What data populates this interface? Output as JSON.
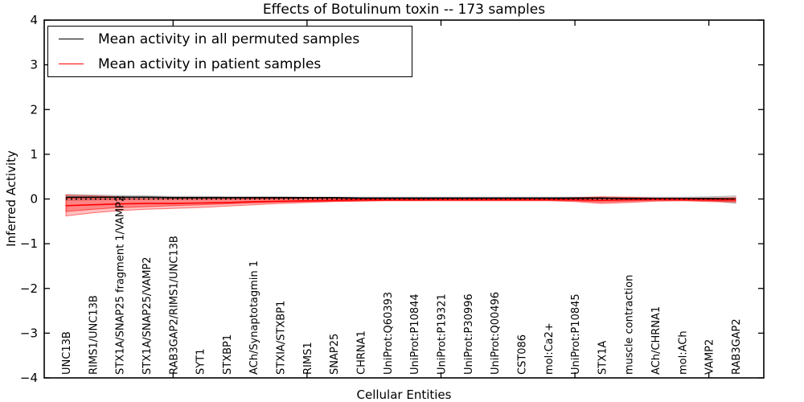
{
  "title": "Effects of Botulinum toxin -- 173 samples",
  "legend": {
    "items": [
      {
        "label": "Mean activity in all permuted samples",
        "color": "#000000"
      },
      {
        "label": "Mean activity in patient samples",
        "color": "#ff0000"
      }
    ]
  },
  "chart_data": {
    "type": "line",
    "title": "Effects of Botulinum toxin -- 173 samples",
    "xlabel": "Cellular Entities",
    "ylabel": "Inferred Activity",
    "ylim": [
      -4,
      4
    ],
    "yticks": [
      4,
      3,
      2,
      1,
      0,
      -1,
      -2,
      -3,
      -4
    ],
    "grid": false,
    "legend_position": "upper left",
    "x_major_tick_indices": [
      4,
      9,
      14,
      19,
      24
    ],
    "categories": [
      "UNC13B",
      "RIMS1/UNC13B",
      "STX1A/SNAP25 fragment 1/VAMP2",
      "STX1A/SNAP25/VAMP2",
      "RAB3GAP2/RIMS1/UNC13B",
      "SYT1",
      "STXBP1",
      "ACh/Synaptotagmin 1",
      "STXIA/STXBP1",
      "RIMS1",
      "SNAP25",
      "CHRNA1",
      "UniProt:Q60393",
      "UniProt:P10844",
      "UniProt:P19321",
      "UniProt:P30996",
      "UniProt:Q00496",
      "CST086",
      "mol:Ca2+",
      "UniProt:P10845",
      "STX1A",
      "muscle contraction",
      "ACh/CHRNA1",
      "mol:ACh",
      "VAMP2",
      "RAB3GAP2"
    ],
    "series": [
      {
        "name": "Mean activity in all permuted samples",
        "color": "#000000",
        "values": [
          0.04,
          0.04,
          0.04,
          0.04,
          0.03,
          0.03,
          0.03,
          0.03,
          0.03,
          0.03,
          0.03,
          0.02,
          0.02,
          0.02,
          0.02,
          0.02,
          0.02,
          0.02,
          0.02,
          0.02,
          0.02,
          0.01,
          0.01,
          0.01,
          0.01,
          0.0
        ]
      },
      {
        "name": "Mean activity in patient samples",
        "color": "#ff0000",
        "values": [
          -0.15,
          -0.13,
          -0.11,
          -0.1,
          -0.1,
          -0.09,
          -0.08,
          -0.06,
          -0.05,
          -0.04,
          -0.03,
          -0.02,
          -0.02,
          -0.02,
          -0.01,
          -0.01,
          -0.01,
          -0.01,
          -0.01,
          -0.02,
          -0.03,
          -0.02,
          -0.01,
          -0.01,
          -0.02,
          -0.02
        ]
      }
    ],
    "bands": [
      {
        "name": "permuted-range",
        "color": "#999999",
        "opacity": 0.4,
        "upper": [
          0.1,
          0.09,
          0.08,
          0.07,
          0.06,
          0.06,
          0.05,
          0.05,
          0.05,
          0.04,
          0.04,
          0.04,
          0.04,
          0.04,
          0.04,
          0.04,
          0.04,
          0.04,
          0.04,
          0.04,
          0.04,
          0.04,
          0.04,
          0.04,
          0.05,
          0.07
        ],
        "lower": [
          -0.03,
          -0.02,
          -0.01,
          0.0,
          0.0,
          0.0,
          0.0,
          0.0,
          0.0,
          0.0,
          0.0,
          0.0,
          0.0,
          0.0,
          0.0,
          0.0,
          0.0,
          0.0,
          0.0,
          0.0,
          0.0,
          0.0,
          -0.01,
          -0.01,
          -0.03,
          -0.1
        ]
      },
      {
        "name": "patient-range-outer",
        "color": "#ff0000",
        "opacity": 0.25,
        "upper": [
          0.09,
          0.07,
          0.05,
          0.04,
          0.03,
          0.03,
          0.03,
          0.02,
          0.02,
          0.02,
          0.02,
          0.01,
          0.01,
          0.01,
          0.01,
          0.01,
          0.01,
          0.01,
          0.01,
          0.03,
          0.05,
          0.04,
          0.02,
          0.02,
          0.02,
          0.03
        ],
        "lower": [
          -0.38,
          -0.31,
          -0.26,
          -0.23,
          -0.21,
          -0.19,
          -0.16,
          -0.13,
          -0.1,
          -0.08,
          -0.06,
          -0.05,
          -0.04,
          -0.04,
          -0.04,
          -0.04,
          -0.04,
          -0.04,
          -0.04,
          -0.06,
          -0.1,
          -0.08,
          -0.05,
          -0.04,
          -0.06,
          -0.07
        ]
      },
      {
        "name": "patient-range-inner",
        "color": "#ff0000",
        "opacity": 0.3,
        "upper": [
          0.02,
          0.01,
          0.0,
          0.0,
          0.0,
          0.0,
          0.0,
          0.0,
          0.0,
          0.0,
          0.0,
          0.0,
          0.0,
          0.0,
          0.0,
          0.0,
          0.0,
          0.0,
          0.0,
          0.01,
          0.02,
          0.01,
          0.0,
          0.0,
          0.0,
          0.01
        ],
        "lower": [
          -0.28,
          -0.23,
          -0.19,
          -0.17,
          -0.15,
          -0.13,
          -0.11,
          -0.09,
          -0.07,
          -0.06,
          -0.05,
          -0.04,
          -0.03,
          -0.03,
          -0.03,
          -0.03,
          -0.03,
          -0.03,
          -0.03,
          -0.04,
          -0.07,
          -0.05,
          -0.03,
          -0.03,
          -0.04,
          -0.05
        ]
      }
    ],
    "zero_line": {
      "style": "dotted",
      "color": "#000000",
      "y": 0
    }
  }
}
